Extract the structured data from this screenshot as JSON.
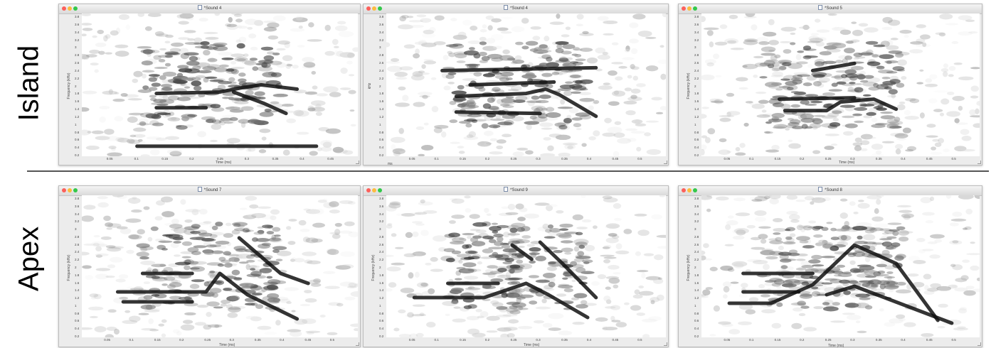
{
  "rows": [
    {
      "label": "Island"
    },
    {
      "label": "Apex"
    }
  ],
  "windows": [
    {
      "id": "w1",
      "row": 0,
      "title": "*Sound 4",
      "ylabel": "Frequency (kHz)",
      "xlabel": "Time (ms)",
      "yticks": [
        "3.8",
        "3.6",
        "3.4",
        "3.2",
        "3",
        "2.8",
        "2.6",
        "2.4",
        "2.2",
        "2",
        "1.8",
        "1.6",
        "1.4",
        "1.2",
        "1",
        "0.8",
        "0.6",
        "0.4",
        "0.2"
      ],
      "xticks": [
        "0.05",
        "0.1",
        "0.15",
        "0.2",
        "0.25",
        "0.3",
        "0.35",
        "0.4",
        "0.45"
      ]
    },
    {
      "id": "w2",
      "row": 0,
      "title": "*Sound 4",
      "ylabel": "kHz",
      "xlabel": "",
      "extra": "ms",
      "yticks": [
        "3.8",
        "3.6",
        "3.4",
        "3.2",
        "3",
        "2.8",
        "2.6",
        "2.4",
        "2.2",
        "2",
        "1.8",
        "1.6",
        "1.4",
        "1.2",
        "1",
        "0.8",
        "0.6",
        "0.4",
        "0.2"
      ],
      "xticks": [
        "0.05",
        "0.1",
        "0.15",
        "0.2",
        "0.25",
        "0.3",
        "0.35",
        "0.4",
        "0.45",
        "0.5"
      ]
    },
    {
      "id": "w3",
      "row": 0,
      "title": "*Sound 5",
      "ylabel": "Frequency (kHz)",
      "xlabel": "Time (ms)",
      "yticks": [
        "3.8",
        "3.6",
        "3.4",
        "3.2",
        "3",
        "2.8",
        "2.6",
        "2.4",
        "2.2",
        "2",
        "1.8",
        "1.6",
        "1.4",
        "1.2",
        "1",
        "0.8",
        "0.6",
        "0.4",
        "0.2"
      ],
      "xticks": [
        "0.05",
        "0.1",
        "0.15",
        "0.2",
        "0.25",
        "0.3",
        "0.35",
        "0.4",
        "0.45",
        "0.5"
      ]
    },
    {
      "id": "w4",
      "row": 1,
      "title": "*Sound 7",
      "ylabel": "Frequency (kHz)",
      "xlabel": "Time (ms)",
      "yticks": [
        "3.8",
        "3.6",
        "3.4",
        "3.2",
        "3",
        "2.8",
        "2.6",
        "2.4",
        "2.2",
        "2",
        "1.8",
        "1.6",
        "1.4",
        "1.2",
        "1",
        "0.8",
        "0.6",
        "0.4",
        "0.2"
      ],
      "xticks": [
        "0.05",
        "0.1",
        "0.15",
        "0.2",
        "0.25",
        "0.3",
        "0.35",
        "0.4",
        "0.45",
        "0.5"
      ]
    },
    {
      "id": "w5",
      "row": 1,
      "title": "*Sound 9",
      "ylabel": "Frequency (kHz)",
      "xlabel": "Time (ms)",
      "yticks": [
        "3.8",
        "3.6",
        "3.4",
        "3.2",
        "3",
        "2.8",
        "2.6",
        "2.4",
        "2.2",
        "2",
        "1.8",
        "1.6",
        "1.4",
        "1.2",
        "1",
        "0.8",
        "0.6",
        "0.4",
        "0.2"
      ],
      "xticks": [
        "0.05",
        "0.1",
        "0.15",
        "0.2",
        "0.25",
        "0.3",
        "0.35",
        "0.4",
        "0.45",
        "0.5"
      ]
    },
    {
      "id": "w6",
      "row": 1,
      "title": "*Sound 8",
      "ylabel": "Frequency (kHz)",
      "xlabel": "Time (ms)",
      "yticks": [
        "3.8",
        "3.6",
        "3.4",
        "3.2",
        "3",
        "2.8",
        "2.6",
        "2.4",
        "2.2",
        "2",
        "1.8",
        "1.6",
        "1.4",
        "1.2",
        "1",
        "0.8",
        "0.6",
        "0.4",
        "0.2"
      ],
      "xticks": [
        "0.05",
        "0.1",
        "0.15",
        "0.2",
        "0.25",
        "0.3",
        "0.35",
        "0.4",
        "0.45",
        "0.5"
      ]
    }
  ]
}
